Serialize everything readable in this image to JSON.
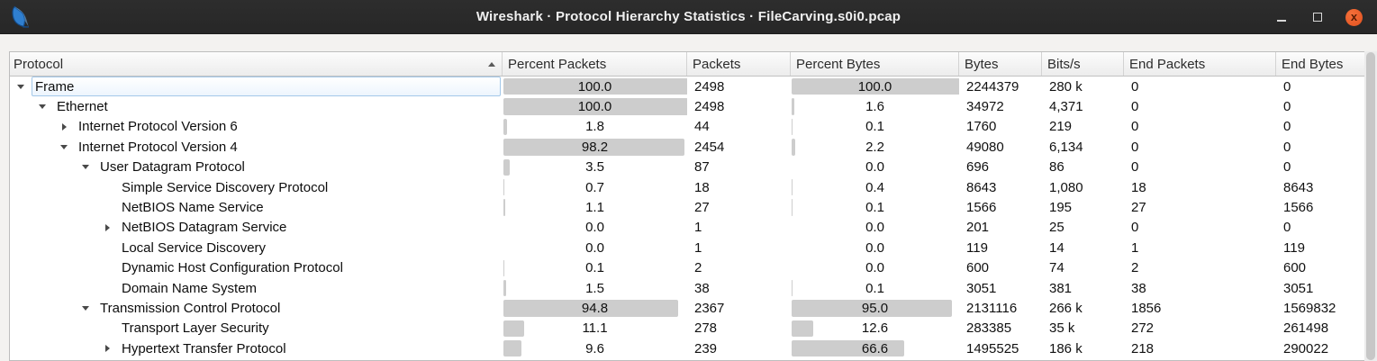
{
  "window": {
    "title": "Wireshark · Protocol Hierarchy Statistics · FileCarving.s0i0.pcap",
    "controls": {
      "minimize": "minimize",
      "maximize": "maximize",
      "close": "close",
      "close_glyph": "x"
    }
  },
  "colors": {
    "titlebar_bg": "#2a2a2a",
    "close_button": "#e95d28",
    "percent_bar": "#cdcdcd",
    "selection_border": "#a3c8e9",
    "header_bg": "#f0f0f0"
  },
  "table": {
    "columns": [
      "Protocol",
      "Percent Packets",
      "Packets",
      "Percent Bytes",
      "Bytes",
      "Bits/s",
      "End Packets",
      "End Bytes"
    ],
    "sort": {
      "column": "Protocol",
      "direction": "ascending"
    },
    "rows": [
      {
        "protocol": "Frame",
        "level": 0,
        "expander": "open",
        "selected": true,
        "percent_packets_text": "100.0",
        "percent_packets_value": 100,
        "packets": "2498",
        "percent_bytes_text": "100.0",
        "percent_bytes_value": 100,
        "bytes": "2244379",
        "bits_s": "280 k",
        "end_packets": "0",
        "end_bytes": "0"
      },
      {
        "protocol": "Ethernet",
        "level": 1,
        "expander": "open",
        "selected": false,
        "percent_packets_text": "100.0",
        "percent_packets_value": 100,
        "packets": "2498",
        "percent_bytes_text": "1.6",
        "percent_bytes_value": 1.6,
        "bytes": "34972",
        "bits_s": "4,371",
        "end_packets": "0",
        "end_bytes": "0"
      },
      {
        "protocol": "Internet Protocol Version 6",
        "level": 2,
        "expander": "closed",
        "selected": false,
        "percent_packets_text": "1.8",
        "percent_packets_value": 1.8,
        "packets": "44",
        "percent_bytes_text": "0.1",
        "percent_bytes_value": 0.1,
        "bytes": "1760",
        "bits_s": "219",
        "end_packets": "0",
        "end_bytes": "0"
      },
      {
        "protocol": "Internet Protocol Version 4",
        "level": 2,
        "expander": "open",
        "selected": false,
        "percent_packets_text": "98.2",
        "percent_packets_value": 98.2,
        "packets": "2454",
        "percent_bytes_text": "2.2",
        "percent_bytes_value": 2.2,
        "bytes": "49080",
        "bits_s": "6,134",
        "end_packets": "0",
        "end_bytes": "0"
      },
      {
        "protocol": "User Datagram Protocol",
        "level": 3,
        "expander": "open",
        "selected": false,
        "percent_packets_text": "3.5",
        "percent_packets_value": 3.5,
        "packets": "87",
        "percent_bytes_text": "0.0",
        "percent_bytes_value": 0,
        "bytes": "696",
        "bits_s": "86",
        "end_packets": "0",
        "end_bytes": "0"
      },
      {
        "protocol": "Simple Service Discovery Protocol",
        "level": 4,
        "expander": "none",
        "selected": false,
        "percent_packets_text": "0.7",
        "percent_packets_value": 0.7,
        "packets": "18",
        "percent_bytes_text": "0.4",
        "percent_bytes_value": 0.4,
        "bytes": "8643",
        "bits_s": "1,080",
        "end_packets": "18",
        "end_bytes": "8643"
      },
      {
        "protocol": "NetBIOS Name Service",
        "level": 4,
        "expander": "none",
        "selected": false,
        "percent_packets_text": "1.1",
        "percent_packets_value": 1.1,
        "packets": "27",
        "percent_bytes_text": "0.1",
        "percent_bytes_value": 0.1,
        "bytes": "1566",
        "bits_s": "195",
        "end_packets": "27",
        "end_bytes": "1566"
      },
      {
        "protocol": "NetBIOS Datagram Service",
        "level": 4,
        "expander": "closed",
        "selected": false,
        "percent_packets_text": "0.0",
        "percent_packets_value": 0,
        "packets": "1",
        "percent_bytes_text": "0.0",
        "percent_bytes_value": 0,
        "bytes": "201",
        "bits_s": "25",
        "end_packets": "0",
        "end_bytes": "0"
      },
      {
        "protocol": "Local Service Discovery",
        "level": 4,
        "expander": "none",
        "selected": false,
        "percent_packets_text": "0.0",
        "percent_packets_value": 0,
        "packets": "1",
        "percent_bytes_text": "0.0",
        "percent_bytes_value": 0,
        "bytes": "119",
        "bits_s": "14",
        "end_packets": "1",
        "end_bytes": "119"
      },
      {
        "protocol": "Dynamic Host Configuration Protocol",
        "level": 4,
        "expander": "none",
        "selected": false,
        "percent_packets_text": "0.1",
        "percent_packets_value": 0.1,
        "packets": "2",
        "percent_bytes_text": "0.0",
        "percent_bytes_value": 0,
        "bytes": "600",
        "bits_s": "74",
        "end_packets": "2",
        "end_bytes": "600"
      },
      {
        "protocol": "Domain Name System",
        "level": 4,
        "expander": "none",
        "selected": false,
        "percent_packets_text": "1.5",
        "percent_packets_value": 1.5,
        "packets": "38",
        "percent_bytes_text": "0.1",
        "percent_bytes_value": 0.1,
        "bytes": "3051",
        "bits_s": "381",
        "end_packets": "38",
        "end_bytes": "3051"
      },
      {
        "protocol": "Transmission Control Protocol",
        "level": 3,
        "expander": "open",
        "selected": false,
        "percent_packets_text": "94.8",
        "percent_packets_value": 94.8,
        "packets": "2367",
        "percent_bytes_text": "95.0",
        "percent_bytes_value": 95,
        "bytes": "2131116",
        "bits_s": "266 k",
        "end_packets": "1856",
        "end_bytes": "1569832"
      },
      {
        "protocol": "Transport Layer Security",
        "level": 4,
        "expander": "none",
        "selected": false,
        "percent_packets_text": "11.1",
        "percent_packets_value": 11.1,
        "packets": "278",
        "percent_bytes_text": "12.6",
        "percent_bytes_value": 12.6,
        "bytes": "283385",
        "bits_s": "35 k",
        "end_packets": "272",
        "end_bytes": "261498"
      },
      {
        "protocol": "Hypertext Transfer Protocol",
        "level": 4,
        "expander": "closed",
        "selected": false,
        "percent_packets_text": "9.6",
        "percent_packets_value": 9.6,
        "packets": "239",
        "percent_bytes_text": "66.6",
        "percent_bytes_value": 66.6,
        "bytes": "1495525",
        "bits_s": "186 k",
        "end_packets": "218",
        "end_bytes": "290022"
      }
    ]
  }
}
